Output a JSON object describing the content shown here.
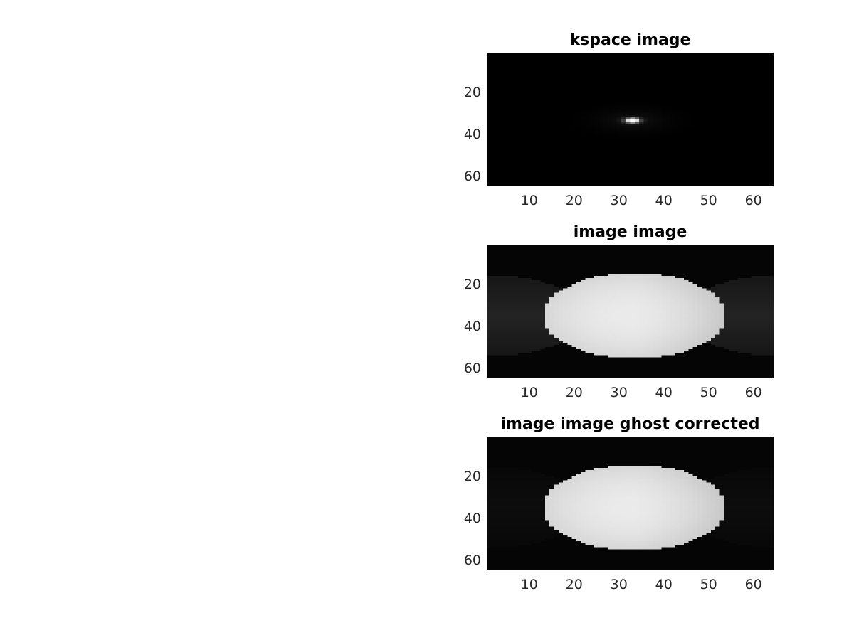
{
  "figure": {
    "background": "#ffffff"
  },
  "chart_data": [
    {
      "type": "heatmap",
      "title": "kspace image",
      "colormap": "gray",
      "image_size": [
        64,
        64
      ],
      "xlim": [
        0.5,
        64.5
      ],
      "ylim": [
        0.5,
        64.5
      ],
      "y_reversed": true,
      "xticks": [
        10,
        20,
        30,
        40,
        50,
        60
      ],
      "yticks": [
        20,
        40,
        60
      ],
      "content": {
        "kind": "kspace",
        "peak_center": [
          33,
          33
        ],
        "peak_value": 1.0
      }
    },
    {
      "type": "heatmap",
      "title": "image image",
      "colormap": "gray",
      "image_size": [
        64,
        64
      ],
      "xlim": [
        0.5,
        64.5
      ],
      "ylim": [
        0.5,
        64.5
      ],
      "y_reversed": true,
      "xticks": [
        10,
        20,
        30,
        40,
        50,
        60
      ],
      "yticks": [
        20,
        40,
        60
      ],
      "content": {
        "kind": "ellipse",
        "center": [
          33.5,
          34.5
        ],
        "semi_axes": [
          20.5,
          20.5
        ],
        "brightness": 0.92,
        "ghost_level": 0.14
      }
    },
    {
      "type": "heatmap",
      "title": "image image ghost corrected",
      "colormap": "gray",
      "image_size": [
        64,
        64
      ],
      "xlim": [
        0.5,
        64.5
      ],
      "ylim": [
        0.5,
        64.5
      ],
      "y_reversed": true,
      "xticks": [
        10,
        20,
        30,
        40,
        50,
        60
      ],
      "yticks": [
        20,
        40,
        60
      ],
      "content": {
        "kind": "ellipse",
        "center": [
          33.5,
          34.5
        ],
        "semi_axes": [
          20.5,
          20.5
        ],
        "brightness": 0.92,
        "ghost_level": 0.05
      }
    }
  ]
}
